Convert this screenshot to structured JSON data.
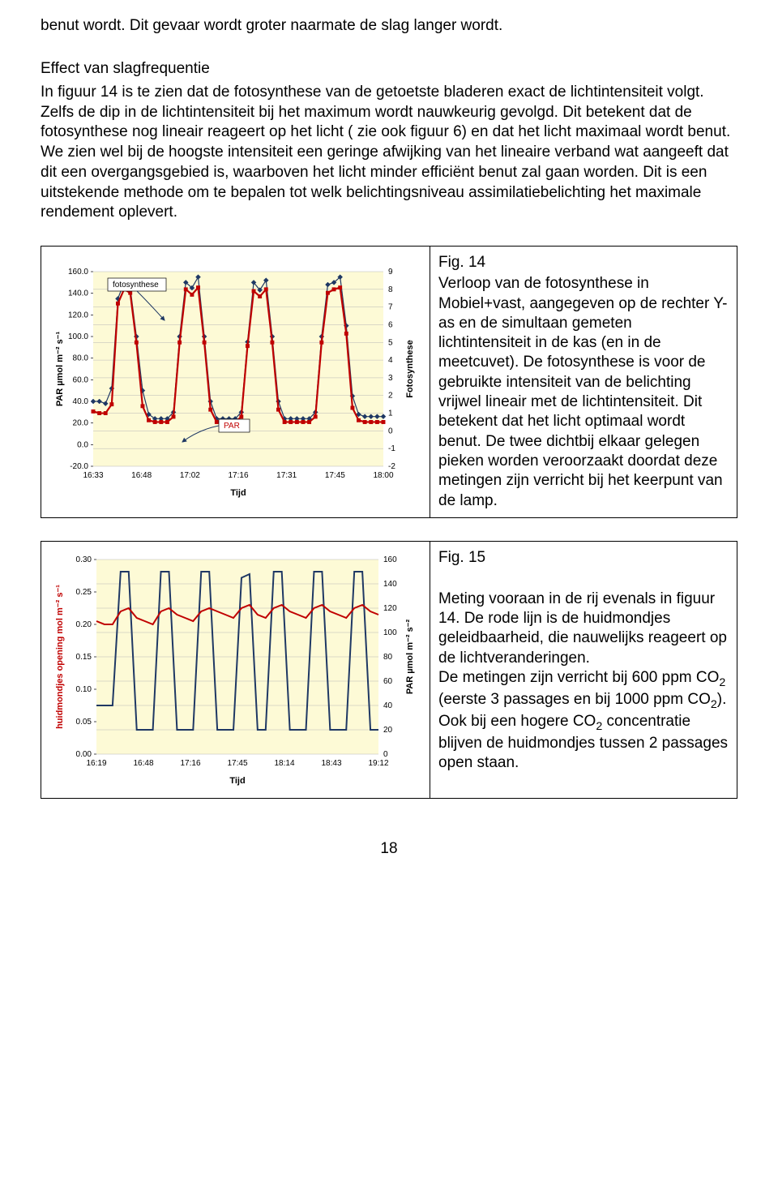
{
  "body": {
    "p1": "benut wordt. Dit gevaar wordt groter naarmate de slag langer wordt.",
    "p2a": "Effect van slagfrequentie",
    "p2b": "In figuur 14 is te zien dat de fotosynthese van de getoetste bladeren exact de lichtintensiteit volgt. Zelfs de dip in de lichtintensiteit bij het maximum wordt nauwkeurig gevolgd. Dit betekent dat de fotosynthese nog lineair reageert op het licht ( zie ook figuur 6) en dat het licht maximaal wordt benut. We zien wel bij de hoogste intensiteit een geringe afwijking van het lineaire verband wat aangeeft dat dit een overgangsgebied is, waarboven het licht minder efficiënt benut zal gaan worden. Dit is een uitstekende methode om te bepalen tot welk belichtingsniveau assimilatiebelichting het maximale rendement oplevert."
  },
  "fig14": {
    "label": "Fig. 14",
    "caption": "Verloop van de fotosynthese in Mobiel+vast, aangegeven op de rechter Y-as en de simultaan gemeten lichtintensiteit in de kas (en in de meetcuvet). De fotosynthese is voor de gebruikte intensiteit van de belichting vrijwel lineair met de lichtintensiteit. Dit betekent dat het licht optimaal wordt benut. De twee dichtbij elkaar gelegen pieken worden veroorzaakt doordat deze metingen zijn verricht bij het keerpunt van de lamp.",
    "chart": {
      "type": "line",
      "x_label": "Tijd",
      "y_left_label": "PAR µmol m⁻² s⁻¹",
      "y_right_label": "Fotosynthese",
      "x_ticks": [
        "16:33",
        "16:48",
        "17:02",
        "17:16",
        "17:31",
        "17:45",
        "18:00"
      ],
      "y_left_ticks": [
        -20,
        0,
        20,
        40,
        60,
        80,
        100,
        120,
        140,
        160
      ],
      "y_right_ticks": [
        -2,
        -1,
        0,
        1,
        2,
        3,
        4,
        5,
        6,
        7,
        8,
        9
      ],
      "series": [
        {
          "name": "PAR",
          "color": "#1f3864",
          "marker": "diamond",
          "marker_fill": "#1f3864",
          "line_width": 1.2,
          "data": [
            40,
            40,
            38,
            52,
            135,
            150,
            145,
            100,
            50,
            28,
            24,
            24,
            24,
            30,
            100,
            150,
            145,
            155,
            100,
            40,
            24,
            24,
            24,
            24,
            30,
            95,
            150,
            143,
            152,
            100,
            40,
            24,
            24,
            24,
            24,
            24,
            30,
            100,
            148,
            150,
            155,
            110,
            45,
            28,
            26,
            26,
            26,
            26
          ]
        },
        {
          "name": "fotosynthese",
          "color": "#c00000",
          "marker": "square",
          "marker_fill": "#c00000",
          "line_width": 2.2,
          "data": [
            1.1,
            1.0,
            1.0,
            1.5,
            7.2,
            8.0,
            7.8,
            5.0,
            1.4,
            0.6,
            0.5,
            0.5,
            0.5,
            0.8,
            5.0,
            8.0,
            7.7,
            8.1,
            5.0,
            1.2,
            0.5,
            0.5,
            0.5,
            0.5,
            0.8,
            4.8,
            7.9,
            7.6,
            8.0,
            5.0,
            1.2,
            0.5,
            0.5,
            0.5,
            0.5,
            0.5,
            0.8,
            5.0,
            7.8,
            8.0,
            8.1,
            5.5,
            1.3,
            0.6,
            0.5,
            0.5,
            0.5,
            0.5
          ]
        }
      ],
      "legend_fotosynthese": "fotosynthese",
      "legend_par": "PAR",
      "bg_color": "#fdfad6",
      "grid_color": "#b7b7b7"
    }
  },
  "fig15": {
    "label": "Fig. 15",
    "caption_1": "Meting vooraan in de rij evenals in figuur 14. De rode lijn is de huidmondjes geleidbaarheid, die nauwelijks reageert op de lichtveranderingen.",
    "caption_2a": "De metingen zijn verricht bij 600 ppm CO",
    "caption_2b": " (eerste 3 passages en bij 1000 ppm CO",
    "caption_2c": "). Ook bij een hogere CO",
    "caption_2d": " concentratie blijven de huidmondjes tussen 2 passages open staan.",
    "sub2": "2",
    "chart": {
      "type": "line",
      "x_label": "Tijd",
      "y_left_label": "huidmondjes opening mol m⁻² s⁻¹",
      "y_right_label": "PAR µmol m⁻² s⁻²",
      "x_ticks": [
        "16:19",
        "16:48",
        "17:16",
        "17:45",
        "18:14",
        "18:43",
        "19:12"
      ],
      "y_left_ticks": [
        0.0,
        0.05,
        0.1,
        0.15,
        0.2,
        0.25,
        0.3
      ],
      "y_right_ticks": [
        0,
        20,
        40,
        60,
        80,
        100,
        120,
        140,
        160
      ],
      "series": [
        {
          "name": "PAR",
          "color": "#1f3864",
          "line_width": 2.0,
          "data": [
            40,
            40,
            40,
            150,
            150,
            20,
            20,
            20,
            150,
            150,
            20,
            20,
            20,
            150,
            150,
            20,
            20,
            20,
            145,
            148,
            20,
            20,
            150,
            150,
            20,
            20,
            20,
            150,
            150,
            20,
            20,
            20,
            150,
            150,
            20,
            20
          ]
        },
        {
          "name": "huidmondjes",
          "color": "#c00000",
          "line_width": 2.0,
          "data": [
            0.205,
            0.2,
            0.2,
            0.22,
            0.225,
            0.21,
            0.205,
            0.2,
            0.22,
            0.225,
            0.215,
            0.21,
            0.205,
            0.22,
            0.225,
            0.22,
            0.215,
            0.21,
            0.225,
            0.23,
            0.215,
            0.21,
            0.225,
            0.23,
            0.22,
            0.215,
            0.21,
            0.225,
            0.23,
            0.22,
            0.215,
            0.21,
            0.225,
            0.23,
            0.22,
            0.215
          ]
        }
      ],
      "bg_color": "#fdfad6",
      "grid_color": "#b7b7b7"
    }
  },
  "page_number": "18"
}
